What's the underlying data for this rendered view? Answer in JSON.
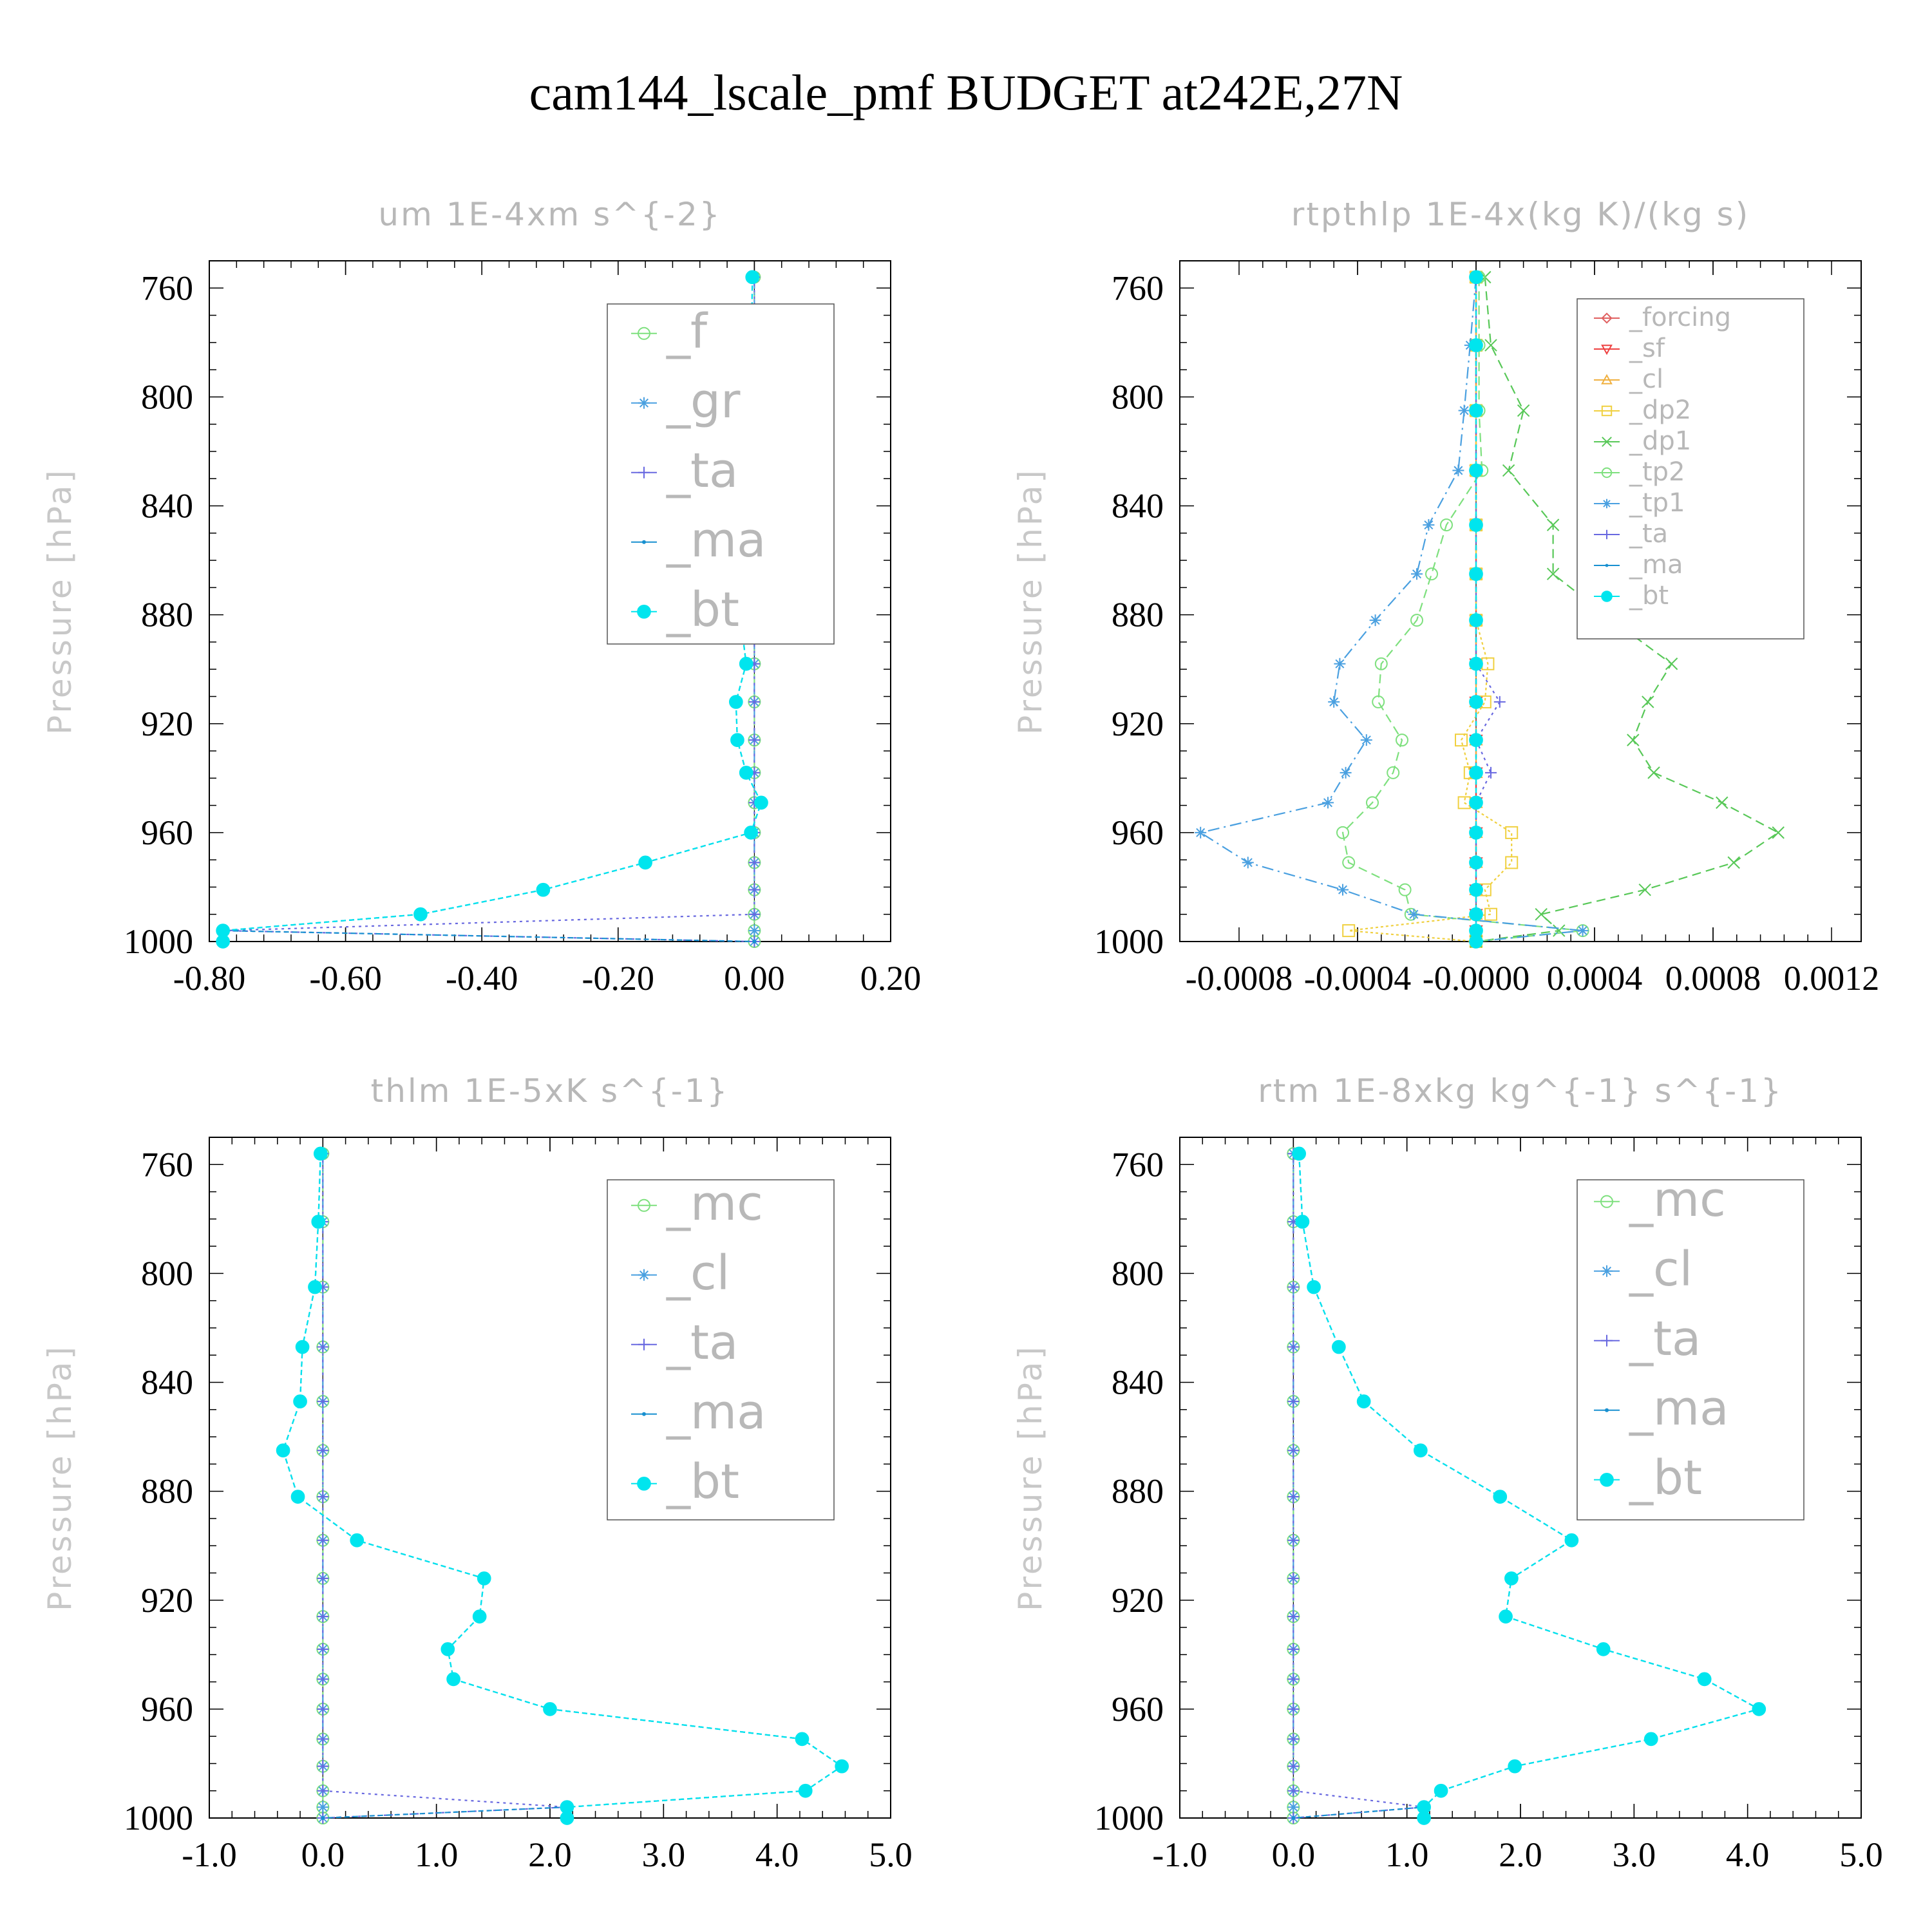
{
  "title": "cam144_lscale_pmf  BUDGET at242E,27N",
  "chart_data": [
    {
      "type": "line",
      "title": "um   1E-4xm s^{-2}",
      "ylabel": "Pressure [hPa]",
      "xlim": [
        -0.8,
        0.2
      ],
      "ylim": [
        1000,
        750
      ],
      "xticks": [
        "-0.80",
        "-0.60",
        "-0.40",
        "-0.20",
        "0.00",
        "0.20"
      ],
      "yticks": [
        "760",
        "800",
        "840",
        "880",
        "920",
        "960",
        "1000"
      ],
      "pressure": [
        756,
        781,
        805,
        827,
        847,
        865,
        882,
        898,
        912,
        926,
        938,
        949,
        960,
        971,
        981,
        990,
        996,
        1000
      ],
      "series": [
        {
          "name": "_f",
          "color": "#7ee07e",
          "marker": "circle",
          "values": [
            0,
            0,
            0,
            0,
            0,
            0,
            0,
            0,
            0,
            0,
            0,
            0,
            0,
            0,
            0,
            0,
            0,
            0
          ]
        },
        {
          "name": "_gr",
          "color": "#4aa0e0",
          "marker": "asterisk",
          "values": [
            0,
            0,
            0,
            0,
            0,
            0,
            0,
            0,
            0,
            0,
            0,
            0,
            0,
            0,
            0,
            0,
            0,
            0
          ]
        },
        {
          "name": "_ta",
          "color": "#6868e0",
          "marker": "plus",
          "values": [
            0,
            0,
            0,
            0,
            0,
            0,
            0,
            0,
            0,
            0,
            0,
            0,
            0,
            0,
            0,
            0,
            -0.78,
            0
          ]
        },
        {
          "name": "_ma",
          "color": "#1890d0",
          "marker": "dot",
          "values": [
            -0.003,
            -0.004,
            -0.003,
            -0.012,
            -0.015,
            -0.018,
            -0.02,
            -0.012,
            -0.027,
            -0.025,
            -0.012,
            0.01,
            -0.005,
            -0.16,
            -0.31,
            -0.49,
            -0.78,
            0
          ]
        },
        {
          "name": "_bt",
          "color": "#00e5ee",
          "marker": "filled-circle",
          "values": [
            -0.003,
            -0.004,
            -0.003,
            -0.012,
            -0.015,
            -0.018,
            -0.02,
            -0.012,
            -0.027,
            -0.025,
            -0.012,
            0.01,
            -0.005,
            -0.16,
            -0.31,
            -0.49,
            -0.78,
            -0.78
          ]
        }
      ]
    },
    {
      "type": "line",
      "title": "rtpthlp   1E-4x(kg K)/(kg s)",
      "ylabel": "Pressure [hPa]",
      "xlim": [
        -0.001,
        0.0013
      ],
      "ylim": [
        1000,
        750
      ],
      "xticks": [
        "-0.0008",
        "-0.0004",
        "-0.0000",
        "0.0004",
        "0.0008",
        "0.0012"
      ],
      "yticks": [
        "760",
        "800",
        "840",
        "880",
        "920",
        "960",
        "1000"
      ],
      "pressure": [
        756,
        781,
        805,
        827,
        847,
        865,
        882,
        898,
        912,
        926,
        938,
        949,
        960,
        971,
        981,
        990,
        996,
        1000
      ],
      "series": [
        {
          "name": "_forcing",
          "color": "#e06060",
          "marker": "diamond",
          "values": [
            0,
            0,
            0,
            0,
            0,
            0,
            0,
            0,
            0,
            0,
            0,
            0,
            0,
            0,
            0,
            0,
            0,
            0
          ]
        },
        {
          "name": "_sf",
          "color": "#ee4040",
          "marker": "triangle-down",
          "values": [
            0,
            0,
            0,
            0,
            0,
            0,
            0,
            0,
            0,
            0,
            0,
            0,
            0,
            0,
            0,
            0,
            0,
            0
          ]
        },
        {
          "name": "_cl",
          "color": "#f0b040",
          "marker": "triangle-up",
          "values": [
            0,
            0,
            0,
            0,
            0,
            0,
            0,
            0,
            0,
            0,
            0,
            0,
            0,
            0,
            0,
            0,
            0,
            0
          ]
        },
        {
          "name": "_dp2",
          "color": "#f0d040",
          "marker": "square",
          "values": [
            0,
            0,
            0,
            0,
            0,
            0,
            0,
            4e-05,
            3e-05,
            -5e-05,
            -2e-05,
            -4e-05,
            0.00012,
            0.00012,
            3e-05,
            5e-05,
            -0.00043,
            0
          ]
        },
        {
          "name": "_dp1",
          "color": "#58c858",
          "marker": "x",
          "values": [
            3e-05,
            5e-05,
            0.00016,
            0.00011,
            0.00026,
            0.00026,
            0.00046,
            0.00066,
            0.00058,
            0.00053,
            0.0006,
            0.00083,
            0.00102,
            0.00087,
            0.00057,
            0.00022,
            0.00028,
            0
          ]
        },
        {
          "name": "_tp2",
          "color": "#7ee07e",
          "marker": "circle",
          "values": [
            1e-05,
            1e-05,
            1e-05,
            2e-05,
            -0.0001,
            -0.00015,
            -0.0002,
            -0.00032,
            -0.00033,
            -0.00025,
            -0.00028,
            -0.00035,
            -0.00045,
            -0.00043,
            -0.00024,
            -0.00022,
            0.00036,
            0
          ]
        },
        {
          "name": "_tp1",
          "color": "#4aa0e0",
          "marker": "asterisk",
          "values": [
            0,
            -2e-05,
            -4e-05,
            -6e-05,
            -0.00016,
            -0.0002,
            -0.00034,
            -0.00046,
            -0.00048,
            -0.00037,
            -0.00044,
            -0.0005,
            -0.00093,
            -0.00077,
            -0.00045,
            -0.00021,
            0.00036,
            0
          ]
        },
        {
          "name": "_ta",
          "color": "#6868e0",
          "marker": "plus",
          "values": [
            0,
            0,
            0,
            0,
            0,
            0,
            0,
            0,
            8e-05,
            0,
            5e-05,
            0,
            0,
            0,
            0,
            0,
            0,
            0
          ]
        },
        {
          "name": "_ma",
          "color": "#1890d0",
          "marker": "dot",
          "values": [
            0,
            0,
            0,
            0,
            0,
            0,
            0,
            0,
            0,
            0,
            0,
            0,
            0,
            0,
            0,
            0,
            0,
            0
          ]
        },
        {
          "name": "_bt",
          "color": "#00e5ee",
          "marker": "filled-circle",
          "values": [
            0,
            0,
            0,
            0,
            0,
            0,
            0,
            0,
            0,
            0,
            0,
            0,
            0,
            0,
            0,
            0,
            0,
            0
          ]
        }
      ]
    },
    {
      "type": "line",
      "title": "thlm   1E-5xK s^{-1}",
      "ylabel": "Pressure [hPa]",
      "xlim": [
        -1.0,
        5.0
      ],
      "ylim": [
        1000,
        750
      ],
      "xticks": [
        "-1.0",
        "0.0",
        "1.0",
        "2.0",
        "3.0",
        "4.0",
        "5.0"
      ],
      "yticks": [
        "760",
        "800",
        "840",
        "880",
        "920",
        "960",
        "1000"
      ],
      "pressure": [
        756,
        781,
        805,
        827,
        847,
        865,
        882,
        898,
        912,
        926,
        938,
        949,
        960,
        971,
        981,
        990,
        996,
        1000
      ],
      "series": [
        {
          "name": "_mc",
          "color": "#7ee07e",
          "marker": "circle",
          "values": [
            0,
            0,
            0,
            0,
            0,
            0,
            0,
            0,
            0,
            0,
            0,
            0,
            0,
            0,
            0,
            0,
            0,
            0
          ]
        },
        {
          "name": "_cl",
          "color": "#4aa0e0",
          "marker": "asterisk",
          "values": [
            0,
            0,
            0,
            0,
            0,
            0,
            0,
            0,
            0,
            0,
            0,
            0,
            0,
            0,
            0,
            0,
            0,
            0
          ]
        },
        {
          "name": "_ta",
          "color": "#6868e0",
          "marker": "plus",
          "values": [
            0,
            0,
            0,
            0,
            0,
            0,
            0,
            0,
            0,
            0,
            0,
            0,
            0,
            0,
            0,
            0,
            2.15,
            0
          ]
        },
        {
          "name": "_ma",
          "color": "#1890d0",
          "marker": "dot",
          "values": [
            -0.02,
            -0.04,
            -0.07,
            -0.18,
            -0.2,
            -0.35,
            -0.22,
            0.3,
            1.42,
            1.38,
            1.1,
            1.15,
            2.0,
            4.22,
            4.57,
            4.25,
            2.15,
            0
          ]
        },
        {
          "name": "_bt",
          "color": "#00e5ee",
          "marker": "filled-circle",
          "values": [
            -0.02,
            -0.04,
            -0.07,
            -0.18,
            -0.2,
            -0.35,
            -0.22,
            0.3,
            1.42,
            1.38,
            1.1,
            1.15,
            2.0,
            4.22,
            4.57,
            4.25,
            2.15,
            2.15
          ]
        }
      ]
    },
    {
      "type": "line",
      "title": "rtm   1E-8xkg kg^{-1} s^{-1}",
      "ylabel": "Pressure [hPa]",
      "xlim": [
        -1.0,
        5.0
      ],
      "ylim": [
        1000,
        750
      ],
      "xticks": [
        "-1.0",
        "0.0",
        "1.0",
        "2.0",
        "3.0",
        "4.0",
        "5.0"
      ],
      "yticks": [
        "760",
        "800",
        "840",
        "880",
        "920",
        "960",
        "1000"
      ],
      "pressure": [
        756,
        781,
        805,
        827,
        847,
        865,
        882,
        898,
        912,
        926,
        938,
        949,
        960,
        971,
        981,
        990,
        996,
        1000
      ],
      "series": [
        {
          "name": "_mc",
          "color": "#7ee07e",
          "marker": "circle",
          "values": [
            0,
            0,
            0,
            0,
            0,
            0,
            0,
            0,
            0,
            0,
            0,
            0,
            0,
            0,
            0,
            0,
            0,
            0
          ]
        },
        {
          "name": "_cl",
          "color": "#4aa0e0",
          "marker": "asterisk",
          "values": [
            0,
            0,
            0,
            0,
            0,
            0,
            0,
            0,
            0,
            0,
            0,
            0,
            0,
            0,
            0,
            0,
            0,
            0
          ]
        },
        {
          "name": "_ta",
          "color": "#6868e0",
          "marker": "plus",
          "values": [
            0,
            0,
            0,
            0,
            0,
            0,
            0,
            0,
            0,
            0,
            0,
            0,
            0,
            0,
            0,
            0,
            1.15,
            0
          ]
        },
        {
          "name": "_ma",
          "color": "#1890d0",
          "marker": "dot",
          "values": [
            0.05,
            0.08,
            0.18,
            0.4,
            0.62,
            1.12,
            1.82,
            2.45,
            1.92,
            1.87,
            2.73,
            3.62,
            4.1,
            3.15,
            1.95,
            1.3,
            1.15,
            0
          ]
        },
        {
          "name": "_bt",
          "color": "#00e5ee",
          "marker": "filled-circle",
          "values": [
            0.05,
            0.08,
            0.18,
            0.4,
            0.62,
            1.12,
            1.82,
            2.45,
            1.92,
            1.87,
            2.73,
            3.62,
            4.1,
            3.15,
            1.95,
            1.3,
            1.15,
            1.15
          ]
        }
      ]
    }
  ]
}
